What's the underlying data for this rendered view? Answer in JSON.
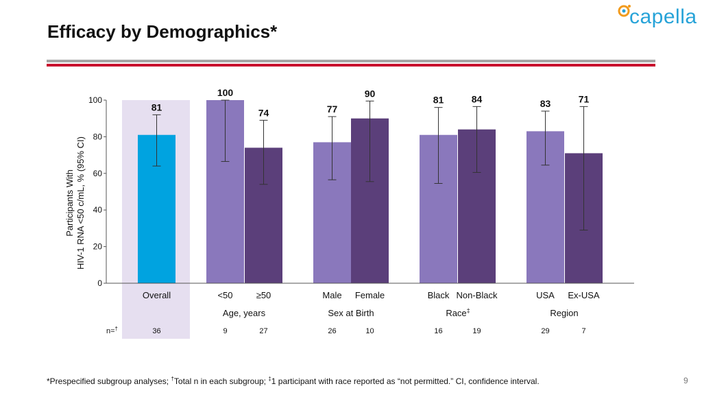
{
  "title": "Efficacy by Demographics*",
  "logo": {
    "text": "capella",
    "icon": "capella-logo-icon"
  },
  "colors": {
    "overall": "#00a3e0",
    "light": "#8a78bc",
    "dark": "#5b3f7a",
    "highlight": "#e6dff0",
    "title_rule": "#a6a6a6",
    "accent_rule": "#c8102e"
  },
  "chart_data": {
    "type": "bar",
    "ylabel_line1": "Participants With",
    "ylabel_line2": "HIV-1 RNA <50 c/mL, % (95% CI)",
    "ylim": [
      0,
      100
    ],
    "yticks": [
      "0",
      "20",
      "40",
      "60",
      "80",
      "100"
    ],
    "n_label": "n=",
    "n_label_sup": "†",
    "bars": [
      {
        "label": "Overall",
        "value": 81,
        "ci": [
          64,
          92
        ],
        "n": "36",
        "shade": "overall"
      },
      {
        "label": "<50",
        "value": 100,
        "ci": [
          66.5,
          100
        ],
        "n": "9",
        "shade": "light"
      },
      {
        "label": "≥50",
        "value": 74,
        "ci": [
          54,
          89
        ],
        "n": "27",
        "shade": "dark"
      },
      {
        "label": "Male",
        "value": 77,
        "ci": [
          56.5,
          91
        ],
        "n": "26",
        "shade": "light"
      },
      {
        "label": "Female",
        "value": 90,
        "ci": [
          55.5,
          99.5
        ],
        "n": "10",
        "shade": "dark"
      },
      {
        "label": "Black",
        "value": 81,
        "ci": [
          54.5,
          96
        ],
        "n": "16",
        "shade": "light"
      },
      {
        "label": "Non-Black",
        "value": 84,
        "ci": [
          60.5,
          96.5
        ],
        "n": "19",
        "shade": "dark"
      },
      {
        "label": "USA",
        "value": 83,
        "ci": [
          64.5,
          94
        ],
        "n": "29",
        "shade": "light"
      },
      {
        "label": "Ex-USA",
        "value": 71,
        "ci": [
          29,
          96.5
        ],
        "n": "7",
        "shade": "dark"
      }
    ],
    "value_labels": [
      "81",
      "100",
      "74",
      "77",
      "90",
      "81",
      "84",
      "83",
      "71"
    ],
    "groups": [
      {
        "name": "Age, years",
        "sup": ""
      },
      {
        "name": "Sex at Birth",
        "sup": ""
      },
      {
        "name": "Race",
        "sup": "‡"
      },
      {
        "name": "Region",
        "sup": ""
      }
    ]
  },
  "footnote": {
    "part1": "*Prespecified subgroup analyses; ",
    "sup1": "†",
    "part2": "Total n in each subgroup; ",
    "sup2": "‡",
    "part3": "1 participant with race reported as “not permitted.” CI, confidence interval."
  },
  "page_number": "9"
}
